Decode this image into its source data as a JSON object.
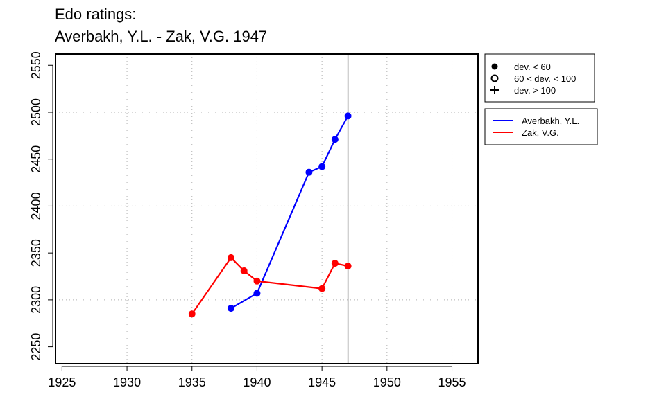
{
  "title": {
    "line1": "Edo ratings:",
    "line2": "Averbakh, Y.L. - Zak, V.G. 1947"
  },
  "legend_deviation": {
    "items": [
      {
        "symbol": "filled-circle",
        "label": "dev. < 60"
      },
      {
        "symbol": "open-circle",
        "label": "60 < dev. < 100"
      },
      {
        "symbol": "plus",
        "label": "dev. > 100"
      }
    ]
  },
  "legend_players": {
    "items": [
      {
        "label": "Averbakh, Y.L.",
        "color": "#0000ff"
      },
      {
        "label": "Zak, V.G.",
        "color": "#ff0000"
      }
    ]
  },
  "chart_data": {
    "type": "line",
    "title": "Edo ratings: Averbakh, Y.L. - Zak, V.G. 1947",
    "xlabel": "",
    "ylabel": "",
    "xlim": [
      1924.5,
      1957
    ],
    "ylim": [
      2232,
      2562
    ],
    "x_ticks": [
      1925,
      1930,
      1935,
      1940,
      1945,
      1950,
      1955
    ],
    "y_ticks": [
      2250,
      2300,
      2350,
      2400,
      2450,
      2500,
      2550
    ],
    "grid": true,
    "vertical_line_x": 1947,
    "legend_placement": "right",
    "series": [
      {
        "name": "Averbakh, Y.L.",
        "color": "#0000ff",
        "marker": "filled-circle",
        "points": [
          [
            1938,
            2291
          ],
          [
            1940,
            2307
          ],
          [
            1944,
            2436
          ],
          [
            1945,
            2442
          ],
          [
            1946,
            2471
          ],
          [
            1947,
            2496
          ]
        ]
      },
      {
        "name": "Zak, V.G.",
        "color": "#ff0000",
        "marker": "filled-circle",
        "points": [
          [
            1935,
            2285
          ],
          [
            1938,
            2345
          ],
          [
            1939,
            2331
          ],
          [
            1940,
            2320
          ],
          [
            1945,
            2312
          ],
          [
            1946,
            2339
          ],
          [
            1947,
            2336
          ]
        ]
      }
    ]
  }
}
